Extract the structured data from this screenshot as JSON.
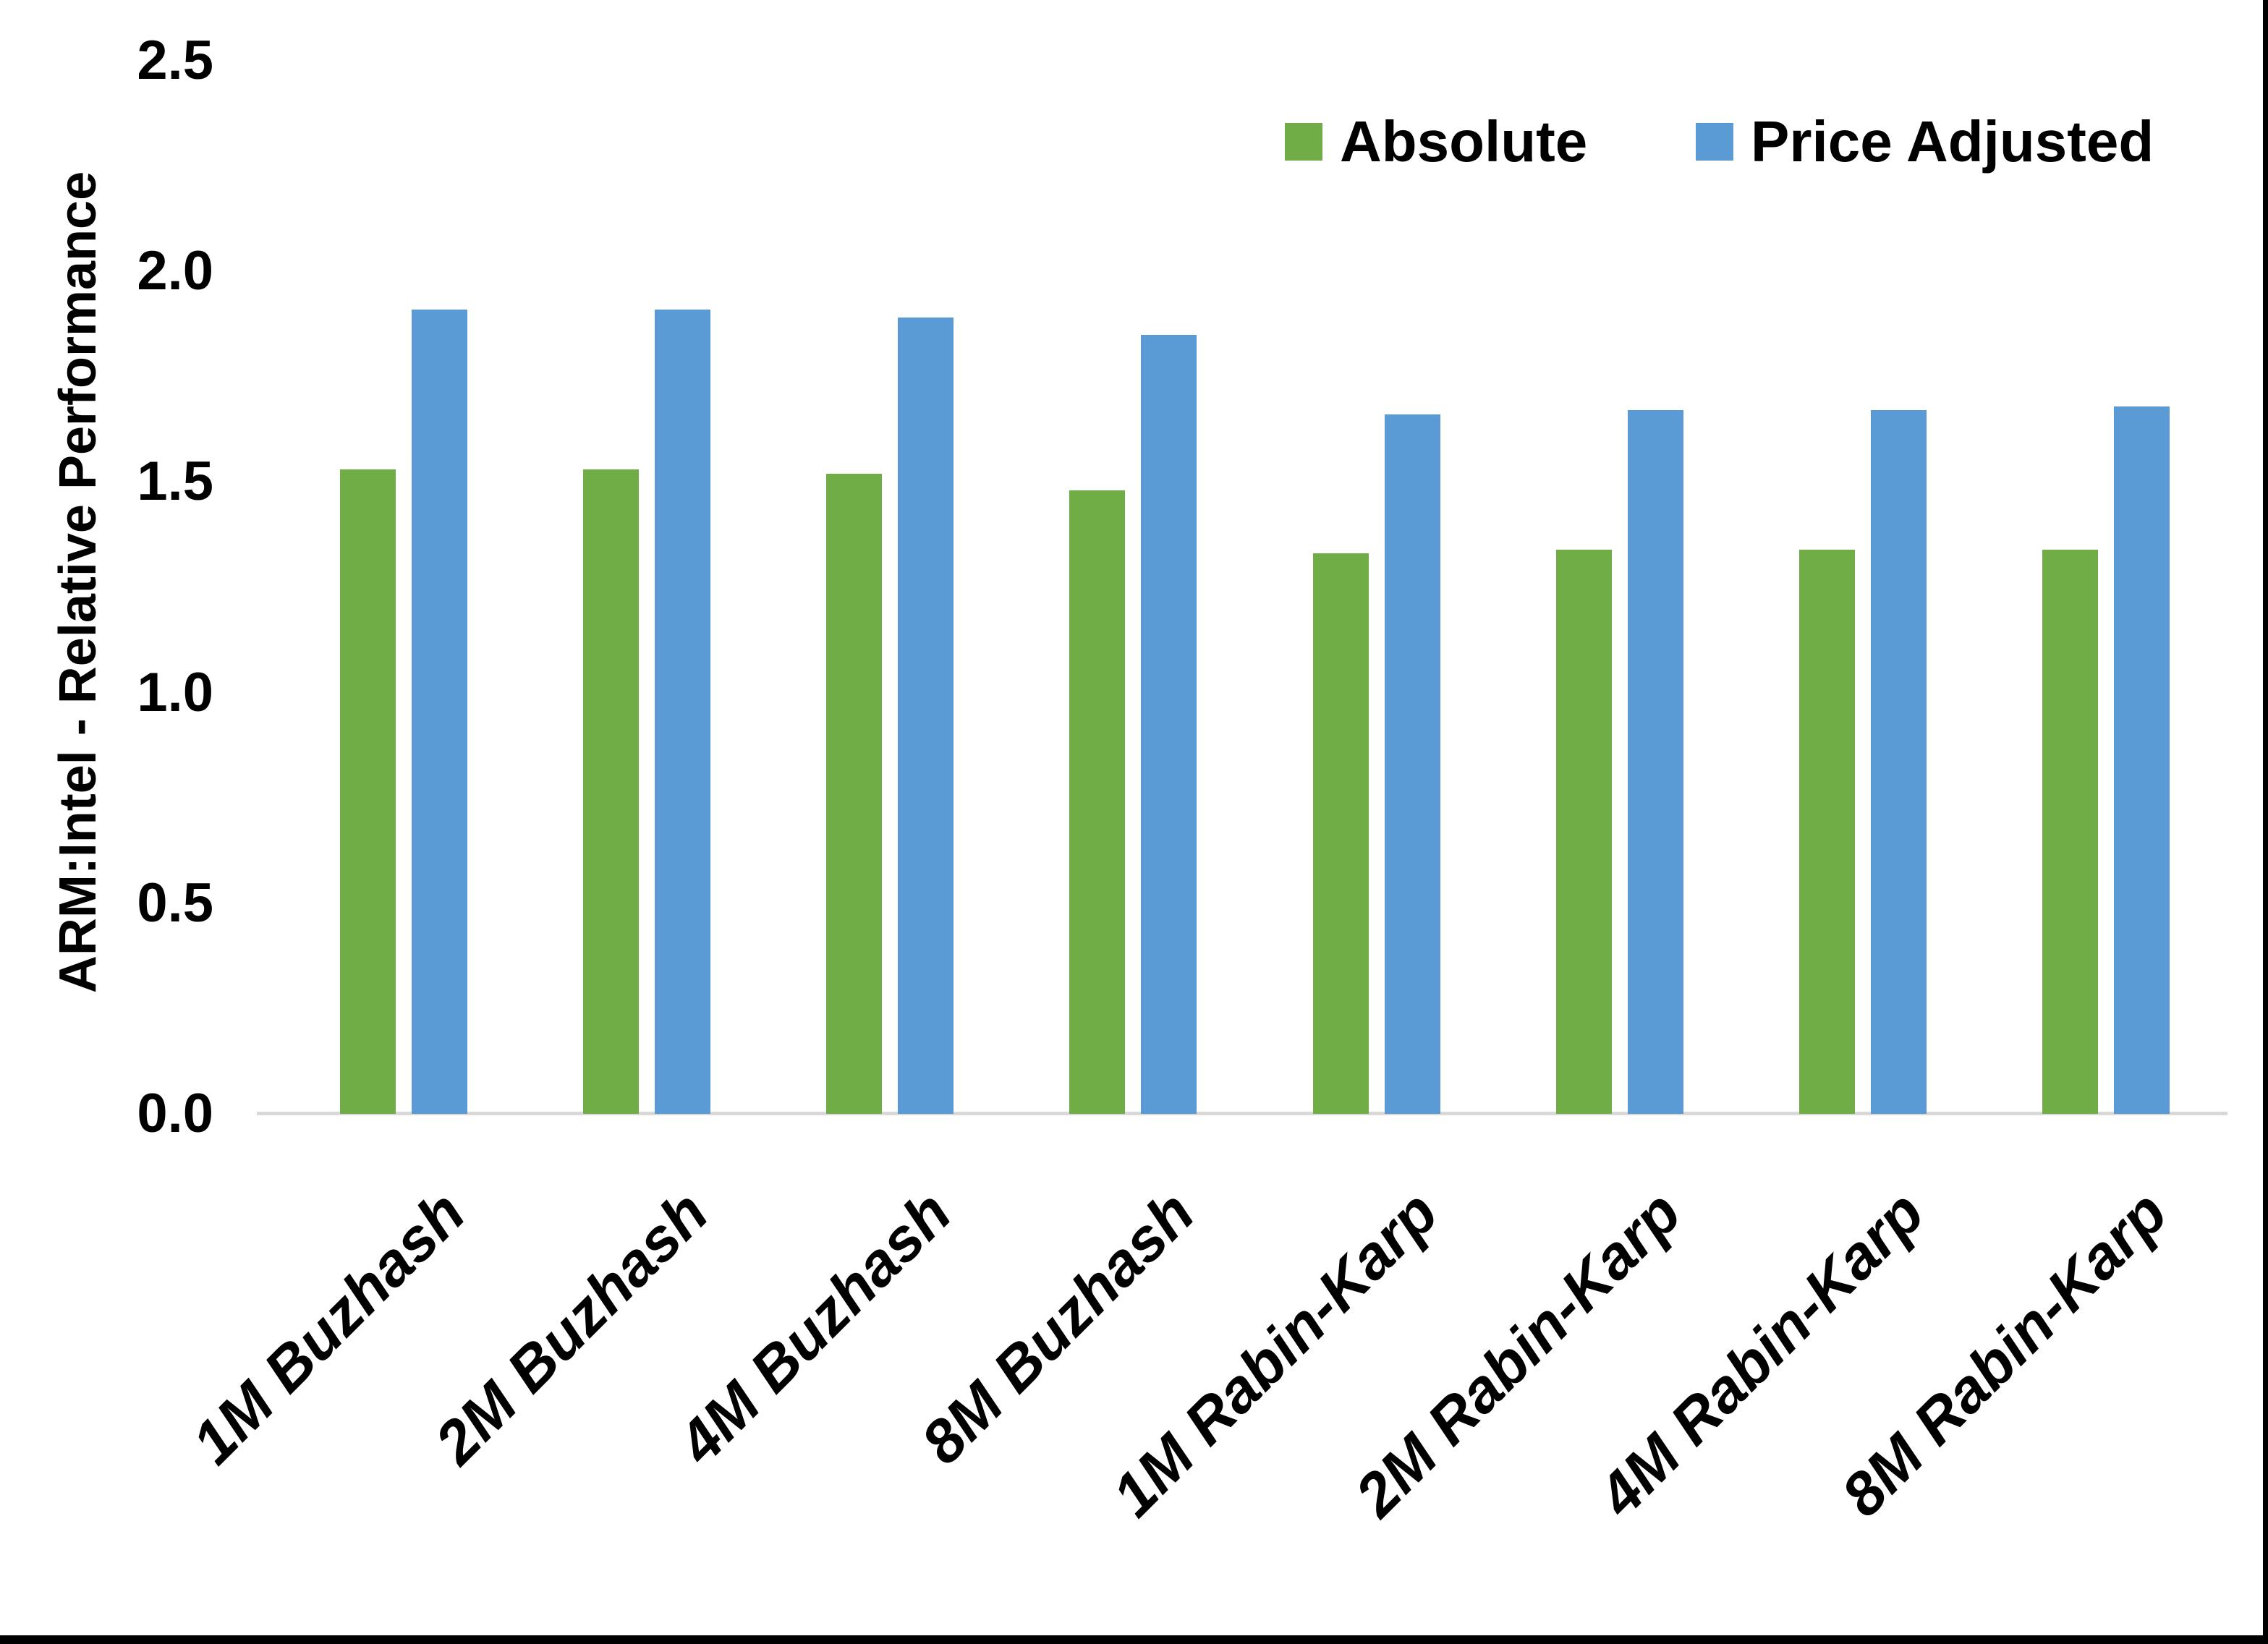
{
  "chart_data": {
    "type": "bar",
    "title": "",
    "categories": [
      "1M Buzhash",
      "2M Buzhash",
      "4M Buzhash",
      "8M Buzhash",
      "1M Rabin-Karp",
      "2M Rabin-Karp",
      "4M Rabin-Karp",
      "8M Rabin-Karp"
    ],
    "series": [
      {
        "name": "Absolute",
        "color": "#70ad47",
        "values": [
          1.53,
          1.53,
          1.52,
          1.48,
          1.33,
          1.34,
          1.34,
          1.34
        ]
      },
      {
        "name": "Price Adjusted",
        "color": "#5b9bd5",
        "values": [
          1.91,
          1.91,
          1.89,
          1.85,
          1.66,
          1.67,
          1.67,
          1.68
        ]
      }
    ],
    "xlabel": "",
    "ylabel": "ARM:Intel - Relative Performance",
    "ylim": [
      0,
      2.5
    ],
    "ytick_labels": [
      "0.0",
      "0.5",
      "1.0",
      "1.5",
      "2.0",
      "2.5"
    ],
    "grid": false,
    "legend_position": "top-right",
    "colors": {
      "axis_line": "#d9d9d9",
      "text": "#000000",
      "background": "#ffffff",
      "frame": "#000000"
    }
  }
}
